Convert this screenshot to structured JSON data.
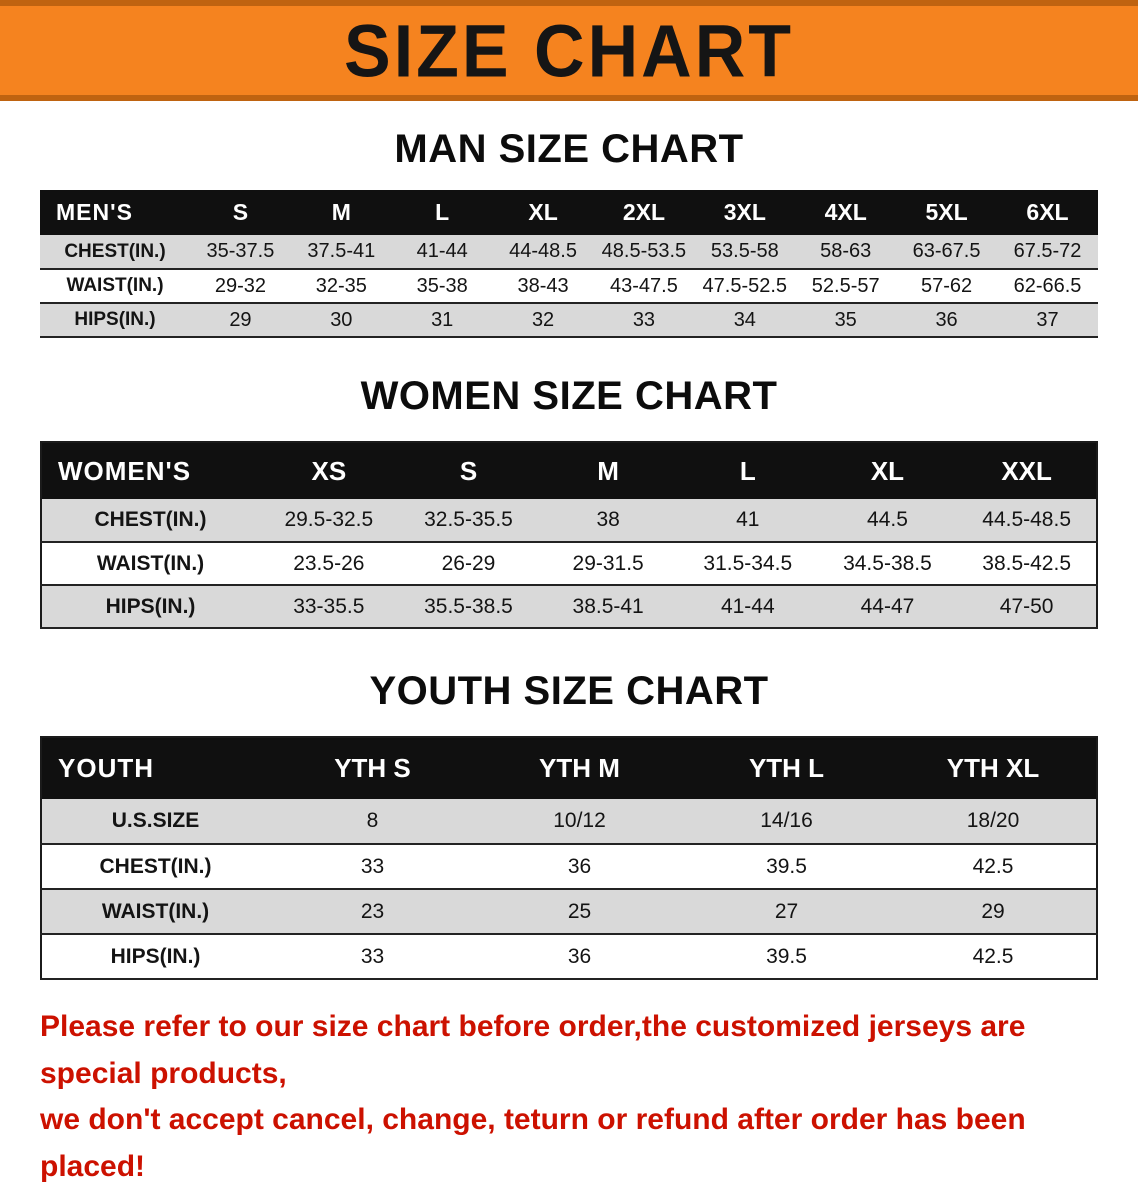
{
  "banner": {
    "title": "SIZE CHART",
    "bg_color": "#f5831f",
    "text_color": "#151515"
  },
  "colors": {
    "banner_orange": "#f5831f",
    "banner_edge": "#bf6310",
    "table_header_bg": "#101010",
    "row_shade": "#d9d9d9",
    "note_red": "#cc1100"
  },
  "chart_data": [
    {
      "type": "table",
      "title": "MAN SIZE CHART",
      "corner_label": "MEN'S",
      "columns": [
        "S",
        "M",
        "L",
        "XL",
        "2XL",
        "3XL",
        "4XL",
        "5XL",
        "6XL"
      ],
      "rows": [
        {
          "label": "CHEST(IN.)",
          "values": [
            "35-37.5",
            "37.5-41",
            "41-44",
            "44-48.5",
            "48.5-53.5",
            "53.5-58",
            "58-63",
            "63-67.5",
            "67.5-72"
          ]
        },
        {
          "label": "WAIST(IN.)",
          "values": [
            "29-32",
            "32-35",
            "35-38",
            "38-43",
            "43-47.5",
            "47.5-52.5",
            "52.5-57",
            "57-62",
            "62-66.5"
          ]
        },
        {
          "label": "HIPS(IN.)",
          "values": [
            "29",
            "30",
            "31",
            "32",
            "33",
            "34",
            "35",
            "36",
            "37"
          ]
        }
      ]
    },
    {
      "type": "table",
      "title": "WOMEN SIZE CHART",
      "corner_label": "WOMEN'S",
      "columns": [
        "XS",
        "S",
        "M",
        "L",
        "XL",
        "XXL"
      ],
      "rows": [
        {
          "label": "CHEST(IN.)",
          "values": [
            "29.5-32.5",
            "32.5-35.5",
            "38",
            "41",
            "44.5",
            "44.5-48.5"
          ]
        },
        {
          "label": "WAIST(IN.)",
          "values": [
            "23.5-26",
            "26-29",
            "29-31.5",
            "31.5-34.5",
            "34.5-38.5",
            "38.5-42.5"
          ]
        },
        {
          "label": "HIPS(IN.)",
          "values": [
            "33-35.5",
            "35.5-38.5",
            "38.5-41",
            "41-44",
            "44-47",
            "47-50"
          ]
        }
      ]
    },
    {
      "type": "table",
      "title": "YOUTH SIZE CHART",
      "corner_label": "YOUTH",
      "columns": [
        "YTH S",
        "YTH M",
        "YTH L",
        "YTH XL"
      ],
      "rows": [
        {
          "label": "U.S.SIZE",
          "values": [
            "8",
            "10/12",
            "14/16",
            "18/20"
          ]
        },
        {
          "label": "CHEST(IN.)",
          "values": [
            "33",
            "36",
            "39.5",
            "42.5"
          ]
        },
        {
          "label": "WAIST(IN.)",
          "values": [
            "23",
            "25",
            "27",
            "29"
          ]
        },
        {
          "label": "HIPS(IN.)",
          "values": [
            "33",
            "36",
            "39.5",
            "42.5"
          ]
        }
      ]
    }
  ],
  "footer_note": {
    "line1": "Please refer to our size chart before order,the customized jerseys are special products,",
    "line2": "we don't accept cancel, change, teturn or refund after order has been placed!"
  }
}
